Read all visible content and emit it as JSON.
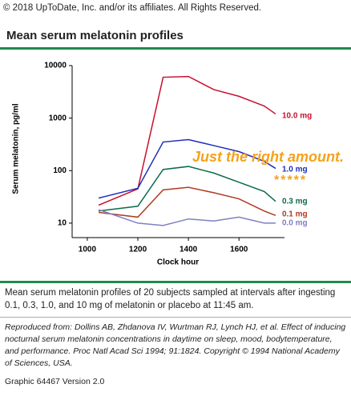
{
  "header": {
    "copyright": "© 2018 UpToDate, Inc. and/or its affiliates. All Rights Reserved.",
    "title": "Mean serum melatonin profiles"
  },
  "chart_data": {
    "type": "line",
    "x_label": "Clock hour",
    "y_label": "Serum melatonin, pg/ml",
    "x": [
      1045,
      1200,
      1300,
      1400,
      1500,
      1600,
      1700,
      1745
    ],
    "xlim": [
      940,
      1780
    ],
    "xticks": [
      1000,
      1200,
      1400,
      1600
    ],
    "ylim": [
      5.3,
      10000
    ],
    "yticks": [
      10,
      100,
      1000,
      10000
    ],
    "log_y": true,
    "series": [
      {
        "name": "10.0 mg",
        "color": "#c8102e",
        "values": [
          22,
          45,
          6000,
          6200,
          3500,
          2600,
          1700,
          1200
        ]
      },
      {
        "name": "1.0 mg",
        "color": "#1f2fb8",
        "values": [
          30,
          46,
          350,
          390,
          300,
          230,
          150,
          110
        ]
      },
      {
        "name": "0.3 mg",
        "color": "#0b6b4a",
        "values": [
          17,
          21,
          105,
          120,
          90,
          60,
          40,
          26
        ]
      },
      {
        "name": "0.1 mg",
        "color": "#b23a22",
        "values": [
          16,
          13,
          43,
          48,
          38,
          29,
          17,
          14
        ]
      },
      {
        "name": "0.0 mg",
        "color": "#7f7fc4",
        "values": [
          18,
          10,
          9,
          12,
          11,
          13,
          10,
          10
        ]
      }
    ],
    "annotations": [
      "Just the right amount.",
      "*****"
    ]
  },
  "caption": "Mean serum melatonin profiles of 20 subjects sampled at intervals after ingesting 0.1, 0.3, 1.0, and 10 mg of melatonin or placebo at 11:45 am.",
  "reference": "Reproduced from: Dollins AB, Zhdanova IV, Wurtman RJ, Lynch HJ, et al. Effect of inducing nocturnal serum melatonin concentrations in daytime on sleep, mood, bodytemperature, and performance. Proc Natl Acad Sci 1994; 91:1824. Copyright © 1994 National Academy of Sciences, USA.",
  "footer": "Graphic 64467 Version 2.0"
}
